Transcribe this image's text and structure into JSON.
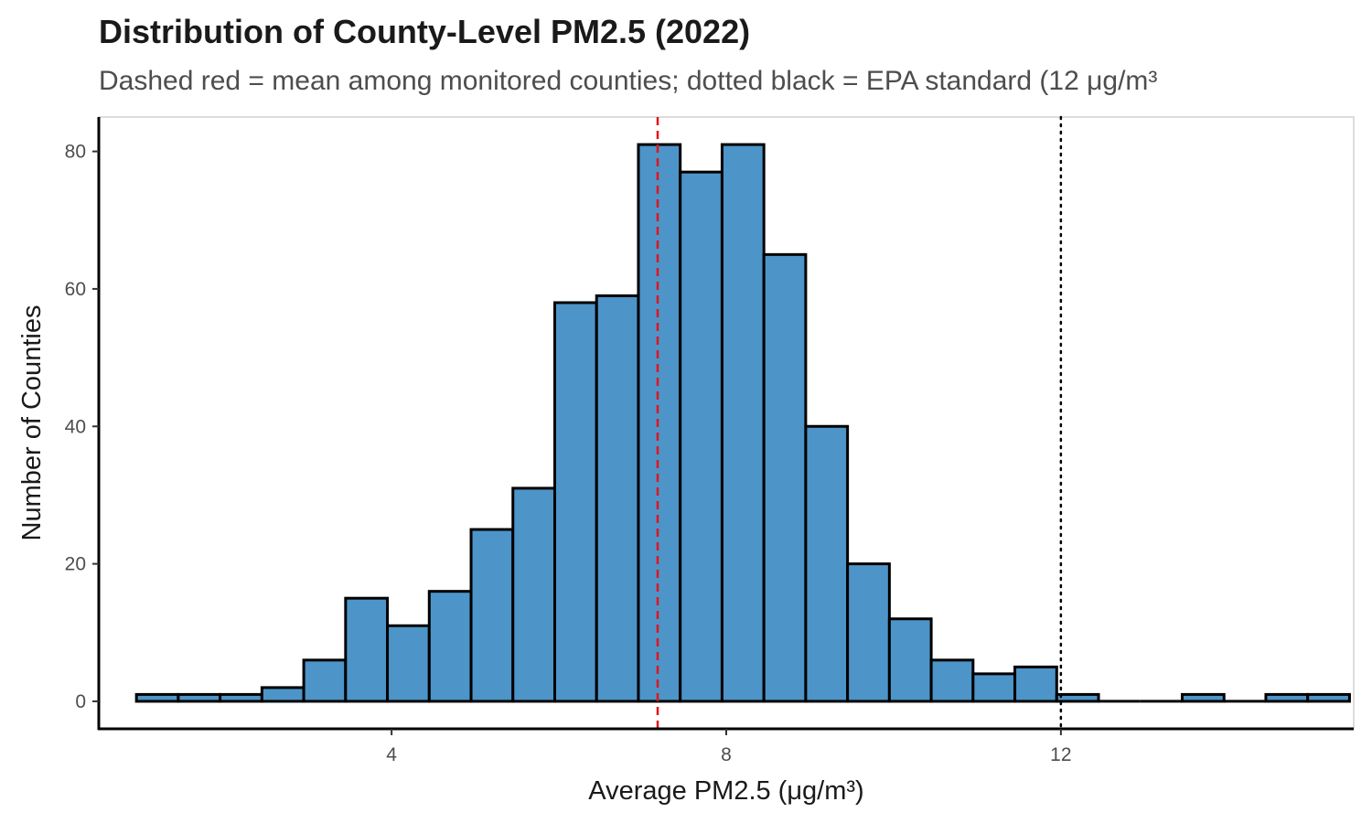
{
  "title": "Distribution of County-Level PM2.5 (2022)",
  "subtitle": "Dashed red = mean among monitored counties; dotted black = EPA standard (12 μg/m³",
  "colors": {
    "bar_fill": "#4d94c8",
    "bar_stroke": "#000000",
    "mean_line": "#e3141b",
    "standard_line": "#000000",
    "panel_border": "#d0d0d0"
  },
  "chart_data": {
    "type": "bar",
    "subtype": "histogram",
    "xlabel": "Average PM2.5 (μg/m³)",
    "ylabel": "Number of Counties",
    "xlim": [
      0.5,
      15.5
    ],
    "ylim": [
      -4,
      85
    ],
    "x_ticks": [
      4,
      8,
      12
    ],
    "x_tick_labels": [
      "4",
      "8",
      "12"
    ],
    "y_ticks": [
      0,
      20,
      40,
      60,
      80
    ],
    "y_tick_labels": [
      "0",
      "20",
      "40",
      "60",
      "80"
    ],
    "bin_width": 0.5,
    "bin_centers": [
      1.2,
      1.7,
      2.2,
      2.7,
      3.2,
      3.7,
      4.2,
      4.7,
      5.2,
      5.7,
      6.2,
      6.7,
      7.2,
      7.7,
      8.2,
      8.7,
      9.2,
      9.7,
      10.2,
      10.7,
      11.2,
      11.7,
      12.2,
      12.7,
      13.2,
      13.7,
      14.2,
      14.7,
      15.2
    ],
    "counts": [
      1,
      1,
      1,
      2,
      6,
      15,
      11,
      16,
      25,
      31,
      58,
      59,
      81,
      77,
      81,
      65,
      40,
      20,
      12,
      6,
      4,
      5,
      1,
      0,
      0,
      1,
      0,
      1,
      1
    ],
    "mean_line_x": 7.18,
    "standard_line_x": 12,
    "grid": false
  }
}
